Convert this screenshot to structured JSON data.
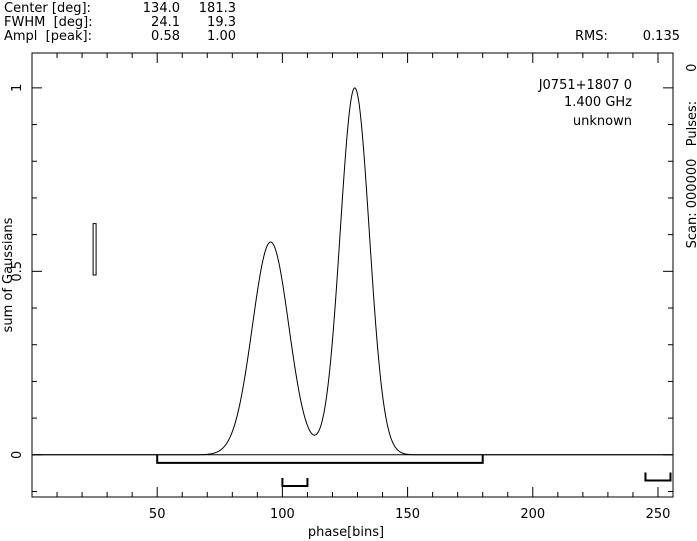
{
  "header": {
    "rows": [
      {
        "label": "Center [deg]:",
        "v1": "134.0",
        "v2": "181.3"
      },
      {
        "label": "FWHM  [deg]:",
        "v1": "24.1",
        "v2": "19.3"
      },
      {
        "label": "Ampl  [peak]:",
        "v1": "0.58",
        "v2": "1.00"
      }
    ],
    "rms_label": "RMS:",
    "rms_value": "0.135"
  },
  "annotations": {
    "source": "J0751+1807 0",
    "frequency": "1.400 GHz",
    "extra": "unknown",
    "right_side": "Scan: 000000   Pulses:       0"
  },
  "chart_data": {
    "type": "line",
    "xlabel": "phase[bins]",
    "ylabel": "sum of Gaussians",
    "xlim": [
      0,
      256
    ],
    "ylim": [
      -0.115,
      1.095
    ],
    "xticks": [
      50,
      100,
      150,
      200,
      250
    ],
    "yticks": [
      0,
      0.5,
      1
    ],
    "grid": false,
    "series": [
      {
        "components": [
          {
            "center_bin": 95.3,
            "fwhm_bins": 17.1,
            "amplitude": 0.58
          },
          {
            "center_bin": 128.9,
            "fwhm_bins": 13.7,
            "amplitude": 1.0
          }
        ]
      }
    ],
    "error_bar": {
      "x": 25,
      "y_low": 0.49,
      "y_high": 0.63
    },
    "brackets": [
      {
        "x_start": 50,
        "x_end": 180,
        "y": -0.022
      },
      {
        "x_start": 100,
        "x_end": 110,
        "y": -0.085
      },
      {
        "x_start": 245,
        "x_end": 255,
        "y": -0.07
      }
    ]
  }
}
